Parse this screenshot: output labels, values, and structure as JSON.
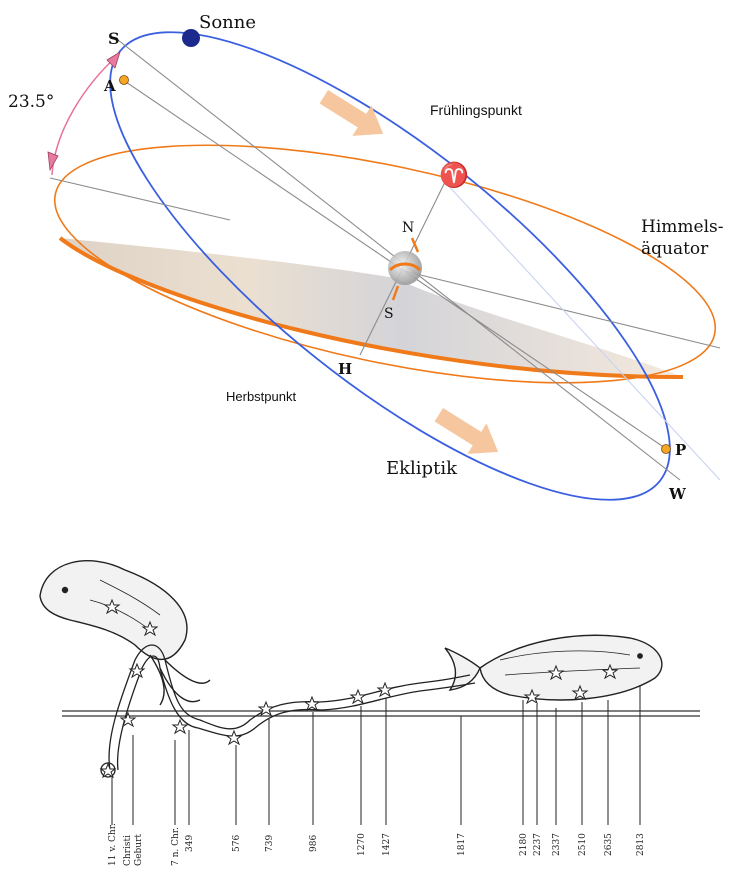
{
  "top_diagram": {
    "labels": {
      "sun": "Sonne",
      "s_top": "S",
      "a": "A",
      "angle": "23.5°",
      "vernal_point": "Frühlingspunkt",
      "aries_symbol": "♈",
      "north": "N",
      "south": "S",
      "equator_line1": "Himmels-",
      "equator_line2": "äquator",
      "h": "H",
      "autumn_point": "Herbstpunkt",
      "ecliptic": "Ekliptik",
      "p": "P",
      "w": "W"
    },
    "colors": {
      "ecliptic": "#3a5fe0",
      "equator": "#f07a1a",
      "arrow": "#f5c49a",
      "sun": "#1b2a8c",
      "marker": "#f5a623",
      "angle_arc": "#e8709a"
    }
  },
  "bottom_diagram": {
    "year_labels": [
      "11 v. Chr.",
      "Christi",
      "Geburt",
      "7 n. Chr.",
      "349",
      "576",
      "739",
      "986",
      "1270",
      "1427",
      "1817",
      "2180",
      "2237",
      "2337",
      "2510",
      "2635",
      "2813"
    ]
  }
}
